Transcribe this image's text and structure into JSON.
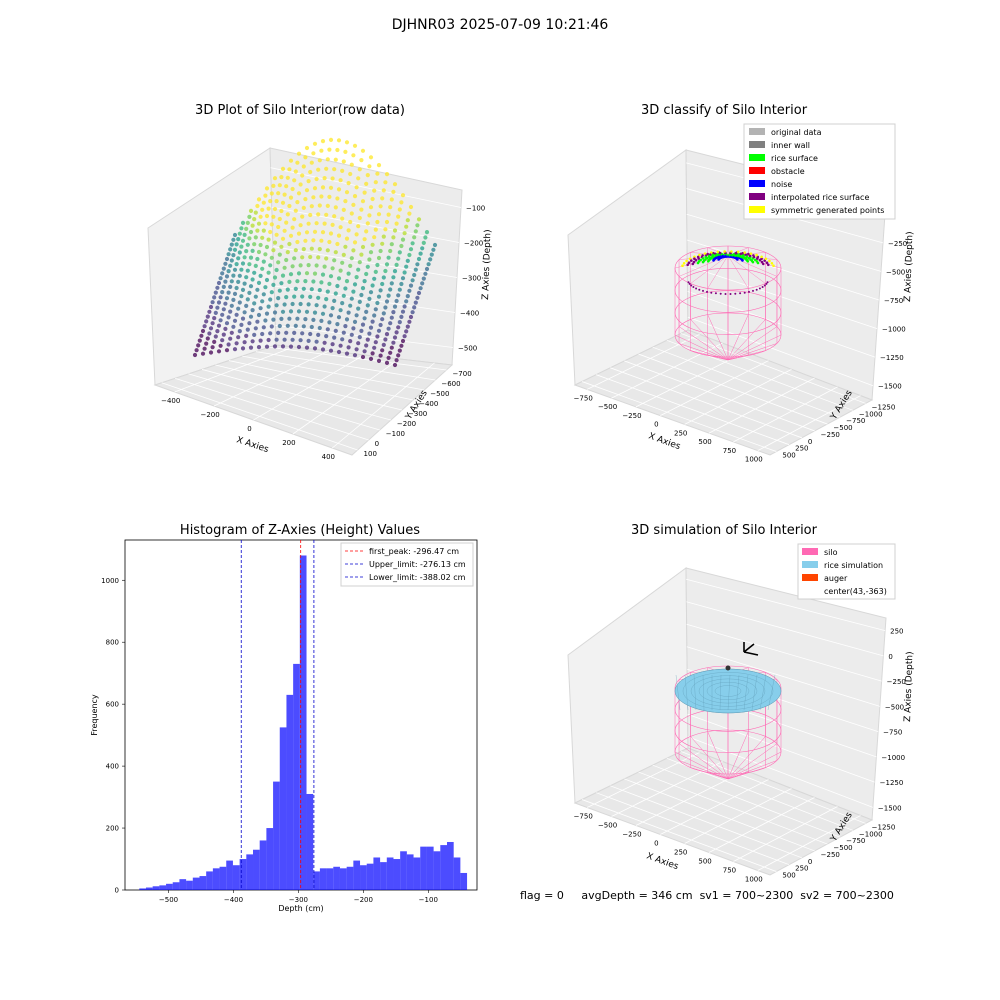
{
  "figure": {
    "suptitle": "DJHNR03 2025-07-09 10:21:46",
    "status": {
      "flag": "flag = 0",
      "avg_depth": "avgDepth = 346 cm",
      "sv1": "sv1 = 700~2300",
      "sv2": "sv2 = 700~2300"
    }
  },
  "colors": {
    "hist_bar": "#0000ff",
    "first_peak": "#ff0000",
    "limit_lines": "#0000cc",
    "silo": "#ff69b4",
    "rice_simulation": "#87ceeb",
    "auger": "#ff4500",
    "original_data": "#b3b3b3",
    "inner_wall": "#808080",
    "rice_surface": "#00ff00",
    "obstacle": "#ff0000",
    "noise": "#0000ff",
    "interpolated": "#800080",
    "symmetric": "#ffff00"
  },
  "panels": {
    "p1": {
      "title": "3D Plot of Silo Interior(row data)",
      "xlabel": "X Axies",
      "ylabel": "Y Axies",
      "zlabel": "Z Axies (Depth)",
      "xticks": [
        "−400",
        "−200",
        "0",
        "200",
        "400"
      ],
      "yticks": [
        "100",
        "0",
        "−100",
        "−200",
        "−300",
        "−400",
        "−500",
        "−600",
        "−700"
      ],
      "zticks": [
        "−100",
        "−200",
        "−300",
        "−400",
        "−500"
      ]
    },
    "p2": {
      "title": "3D classify of Silo Interior",
      "xlabel": "X Axies",
      "ylabel": "Y Axies",
      "zlabel": "Z Axies (Depth)",
      "xticks": [
        "−750",
        "−500",
        "−250",
        "0",
        "250",
        "500",
        "750",
        "1000"
      ],
      "yticks": [
        "500",
        "250",
        "0",
        "−250",
        "−500",
        "−750",
        "−1000",
        "−1250"
      ],
      "zticks": [
        "0",
        "−250",
        "−500",
        "−750",
        "−1000",
        "−1250",
        "−1500"
      ],
      "legend": [
        "original data",
        "inner wall",
        "rice surface",
        "obstacle",
        "noise",
        "interpolated rice surface",
        "symmetric generated points"
      ]
    },
    "p4": {
      "title": "3D simulation of Silo Interior",
      "xlabel": "X Axies",
      "ylabel": "Y Axies",
      "zlabel": "Z Axies (Depth)",
      "xticks": [
        "−750",
        "−500",
        "−250",
        "0",
        "250",
        "500",
        "750",
        "1000"
      ],
      "yticks": [
        "500",
        "250",
        "0",
        "−250",
        "−500",
        "−750",
        "−1000",
        "−1250"
      ],
      "zticks": [
        "250",
        "0",
        "−250",
        "−500",
        "−750",
        "−1000",
        "−1250",
        "−1500"
      ],
      "legend": [
        "silo",
        "rice simulation",
        "auger",
        "center(43,-363)"
      ]
    }
  },
  "chart_data": [
    {
      "type": "bar",
      "title": "Histogram of Z-Axies (Height) Values",
      "xlabel": "Depth (cm)",
      "ylabel": "Frequency",
      "xlim": [
        -567,
        -25
      ],
      "ylim": [
        0,
        1130
      ],
      "xticks": [
        -500,
        -400,
        -300,
        -200,
        -100
      ],
      "xtick_labels": [
        "−500",
        "−400",
        "−300",
        "−200",
        "−100"
      ],
      "yticks": [
        0,
        200,
        400,
        600,
        800,
        1000
      ],
      "bin_start": -545,
      "bin_width": 10.3,
      "values": [
        5,
        8,
        12,
        15,
        20,
        25,
        35,
        30,
        40,
        45,
        60,
        70,
        75,
        95,
        80,
        100,
        115,
        130,
        160,
        200,
        350,
        525,
        630,
        730,
        1080,
        310,
        60,
        70,
        70,
        75,
        70,
        75,
        95,
        80,
        85,
        105,
        90,
        105,
        100,
        125,
        115,
        105,
        140,
        140,
        125,
        145,
        155,
        105,
        55
      ],
      "vlines": [
        {
          "x": -296.47,
          "label": "first_peak: -296.47 cm",
          "color": "#ff0000"
        },
        {
          "x": -276.13,
          "label": "Upper_limit: -276.13 cm",
          "color": "#0000cc"
        },
        {
          "x": -388.02,
          "label": "Lower_limit: -388.02 cm",
          "color": "#0000cc"
        }
      ]
    }
  ]
}
